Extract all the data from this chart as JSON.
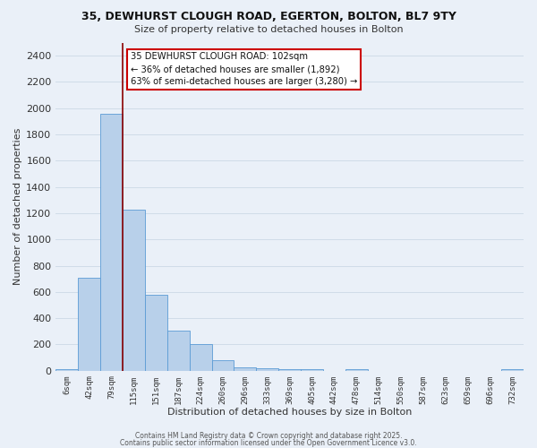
{
  "title": "35, DEWHURST CLOUGH ROAD, EGERTON, BOLTON, BL7 9TY",
  "subtitle": "Size of property relative to detached houses in Bolton",
  "xlabel": "Distribution of detached houses by size in Bolton",
  "ylabel": "Number of detached properties",
  "bar_labels": [
    "6sqm",
    "42sqm",
    "79sqm",
    "115sqm",
    "151sqm",
    "187sqm",
    "224sqm",
    "260sqm",
    "296sqm",
    "333sqm",
    "369sqm",
    "405sqm",
    "442sqm",
    "478sqm",
    "514sqm",
    "550sqm",
    "587sqm",
    "623sqm",
    "659sqm",
    "696sqm",
    "732sqm"
  ],
  "bar_values": [
    15,
    710,
    1960,
    1230,
    575,
    305,
    200,
    80,
    25,
    20,
    15,
    15,
    0,
    15,
    0,
    0,
    0,
    0,
    0,
    0,
    15
  ],
  "bar_color": "#b8d0ea",
  "bar_edge_color": "#5b9bd5",
  "bg_color": "#eaf0f8",
  "grid_color": "#d0dce8",
  "vline_x": 2.5,
  "vline_color": "#8b0000",
  "annotation_text": "35 DEWHURST CLOUGH ROAD: 102sqm\n← 36% of detached houses are smaller (1,892)\n63% of semi-detached houses are larger (3,280) →",
  "annotation_box_color": "#ffffff",
  "annotation_box_edge": "#cc0000",
  "ylim": [
    0,
    2500
  ],
  "yticks": [
    0,
    200,
    400,
    600,
    800,
    1000,
    1200,
    1400,
    1600,
    1800,
    2000,
    2200,
    2400
  ],
  "footer1": "Contains HM Land Registry data © Crown copyright and database right 2025.",
  "footer2": "Contains public sector information licensed under the Open Government Licence v3.0."
}
